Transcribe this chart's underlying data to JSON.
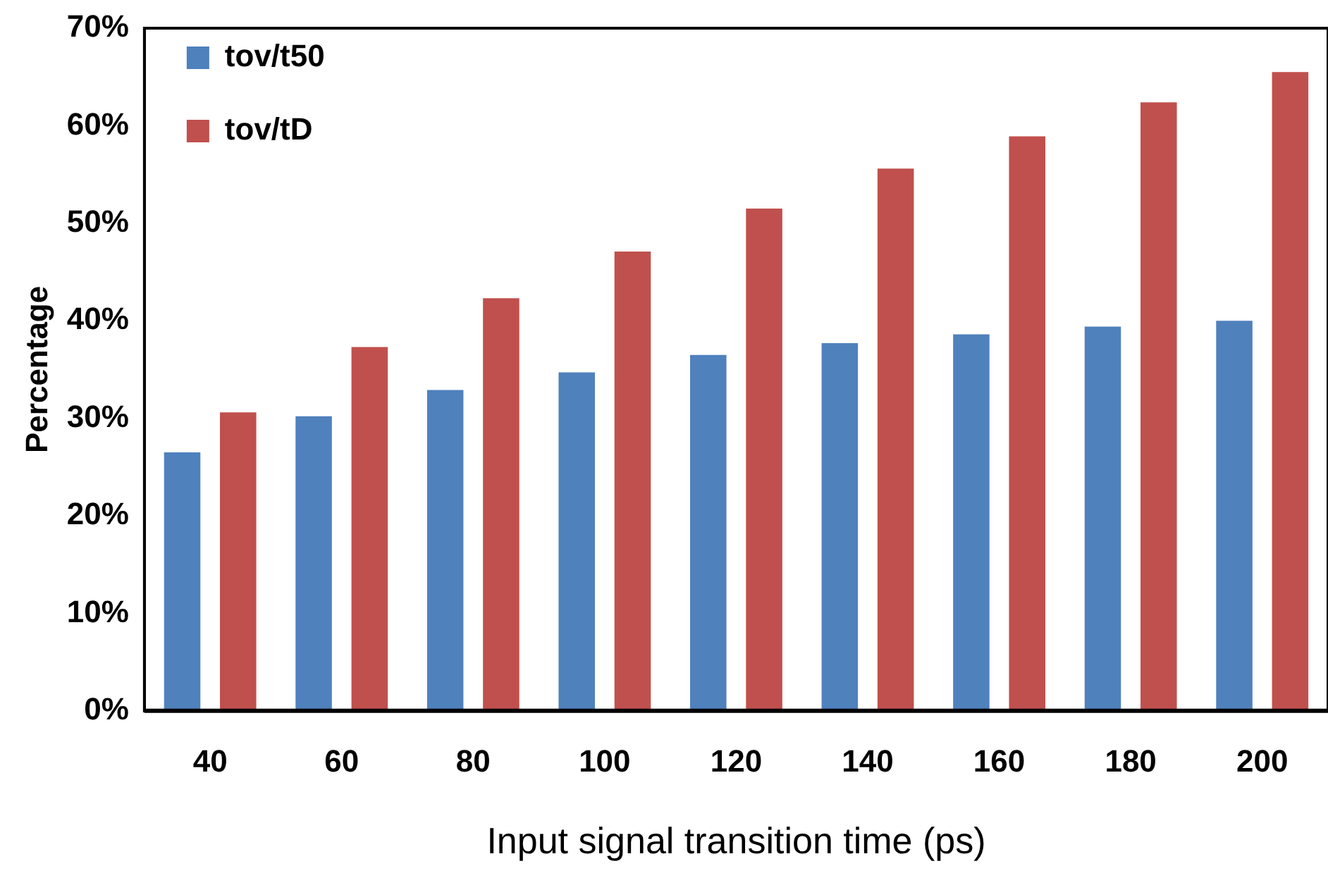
{
  "chart_data": {
    "type": "bar",
    "xlabel": "Input signal transition time (ps)",
    "ylabel": "Percentage",
    "categories": [
      "40",
      "60",
      "80",
      "100",
      "120",
      "140",
      "160",
      "180",
      "200"
    ],
    "series": [
      {
        "name": "tov/t50",
        "color": "#4f81bd",
        "values": [
          26.5,
          30.2,
          32.9,
          34.7,
          36.5,
          37.7,
          38.6,
          39.4,
          40.0
        ]
      },
      {
        "name": "tov/tD",
        "color": "#c0504d",
        "values": [
          30.6,
          37.3,
          42.3,
          47.1,
          51.5,
          55.6,
          58.9,
          62.4,
          65.5
        ]
      }
    ],
    "ylim": [
      0,
      70
    ],
    "yticks": [
      {
        "value": 0,
        "label": "0%"
      },
      {
        "value": 10,
        "label": "10%"
      },
      {
        "value": 20,
        "label": "20%"
      },
      {
        "value": 30,
        "label": "30%"
      },
      {
        "value": 40,
        "label": "40%"
      },
      {
        "value": 50,
        "label": "50%"
      },
      {
        "value": 60,
        "label": "60%"
      },
      {
        "value": 70,
        "label": "70%"
      }
    ],
    "grid": false,
    "legend": "top left"
  }
}
